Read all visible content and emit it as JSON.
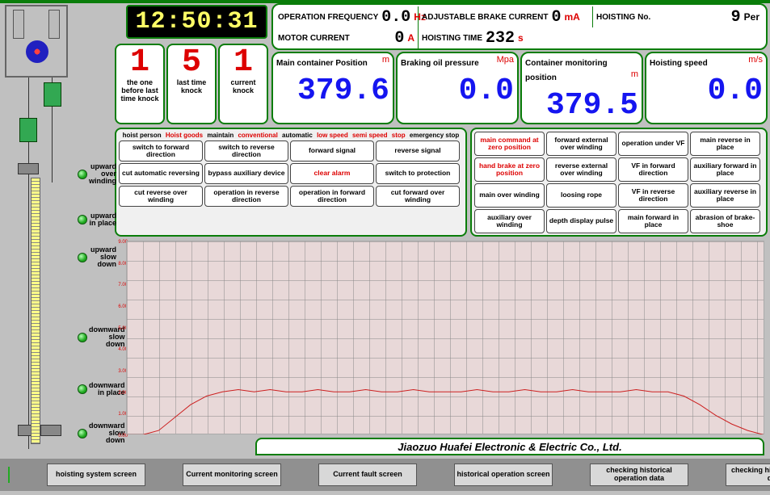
{
  "clock": "12:50:31",
  "readouts": {
    "op_freq_label": "OPERATION FREQUENCY",
    "op_freq_val": "0.0",
    "op_freq_unit": "Hz",
    "brake_cur_label": "ADJUSTABLE BRAKE CURRENT",
    "brake_cur_val": "0",
    "brake_cur_unit": "mA",
    "motor_cur_label": "MOTOR CURRENT",
    "motor_cur_val": "0",
    "motor_cur_unit": "A",
    "hoist_time_label": "HOISTING TIME",
    "hoist_time_val": "232",
    "hoist_time_unit": "s",
    "hoist_no_label": "HOISTING No.",
    "hoist_no_val": "9",
    "hoist_no_unit": "Per"
  },
  "knocks": [
    {
      "num": "1",
      "label": "the one before last time knock"
    },
    {
      "num": "5",
      "label": "last time knock"
    },
    {
      "num": "1",
      "label": "current knock"
    }
  ],
  "bigvals": [
    {
      "title": "Main container Position",
      "unit": "m",
      "val": "379.6"
    },
    {
      "title": "Braking oil pressure",
      "unit": "Mpa",
      "val": "0.0"
    },
    {
      "title": "Container monitoring position",
      "unit": "m",
      "val": "379.5"
    },
    {
      "title": "Hoisting speed",
      "unit": "m/s",
      "val": "0.0"
    }
  ],
  "modes": [
    {
      "t": "hoist person",
      "r": false
    },
    {
      "t": "Hoist goods",
      "r": true
    },
    {
      "t": "maintain",
      "r": false
    },
    {
      "t": "conventional",
      "r": true
    },
    {
      "t": "automatic",
      "r": false
    },
    {
      "t": "low speed",
      "r": true
    },
    {
      "t": "semi speed",
      "r": true
    },
    {
      "t": "stop",
      "r": true
    },
    {
      "t": "emergency stop",
      "r": false
    }
  ],
  "left_buttons": [
    {
      "t": "switch to forward direction",
      "w": 104
    },
    {
      "t": "switch to reverse direction",
      "w": 104
    },
    {
      "t": "forward signal",
      "w": 104
    },
    {
      "t": "reverse signal",
      "w": 104
    },
    {
      "t": "cut automatic reversing",
      "w": 104
    },
    {
      "t": "bypass auxiliary device",
      "w": 104
    },
    {
      "t": "clear alarm",
      "w": 104,
      "r": true
    },
    {
      "t": "switch to protection",
      "w": 104
    },
    {
      "t": "cut reverse over winding",
      "w": 104
    },
    {
      "t": "operation in reverse direction",
      "w": 104
    },
    {
      "t": "operation in forward direction",
      "w": 104
    },
    {
      "t": "cut forward over winding",
      "w": 104
    }
  ],
  "right_buttons": [
    {
      "t": "main command at zero position",
      "r": true
    },
    {
      "t": "forward external over winding"
    },
    {
      "t": "operation under VF"
    },
    {
      "t": "main reverse in place"
    },
    {
      "t": "hand brake at zero position",
      "r": true
    },
    {
      "t": "reverse external over winding"
    },
    {
      "t": "VF in forward direction"
    },
    {
      "t": "auxiliary forward in place"
    },
    {
      "t": "main over winding"
    },
    {
      "t": "loosing rope"
    },
    {
      "t": "VF in reverse direction"
    },
    {
      "t": "auxiliary reverse in place"
    },
    {
      "t": "auxiliary over winding"
    },
    {
      "t": "depth display pulse"
    },
    {
      "t": "main forward in place"
    },
    {
      "t": "abrasion of brake-shoe"
    }
  ],
  "leds": [
    {
      "label": "upward over winding"
    },
    {
      "label": "upward in place"
    },
    {
      "label": "upward slow down"
    },
    {
      "label": "downward slow down"
    },
    {
      "label": "downward in place"
    },
    {
      "label": "downward slow down"
    }
  ],
  "chart": {
    "type": "line",
    "ylim": [
      0,
      9
    ],
    "ytick_step": 1,
    "background_color": "#e8d8d8",
    "grid_color": "#888888",
    "line_color": "#cc2020",
    "line_width": 1,
    "x_range": [
      0,
      360
    ],
    "y_ticks": [
      "0.00",
      "1.00",
      "2.00",
      "3.00",
      "4.00",
      "5.00",
      "6.00",
      "7.00",
      "8.00",
      "9.00"
    ],
    "series": [
      0,
      0,
      0.2,
      0.8,
      1.4,
      1.8,
      2.0,
      2.1,
      2.0,
      2.1,
      2.0,
      2.0,
      2.1,
      2.0,
      2.0,
      2.1,
      2.0,
      2.0,
      2.1,
      2.0,
      2.0,
      2.0,
      2.1,
      2.0,
      2.0,
      2.1,
      2.0,
      2.0,
      2.1,
      2.0,
      2.0,
      2.0,
      2.1,
      2.0,
      2.0,
      1.8,
      1.4,
      0.9,
      0.5,
      0.2,
      0
    ]
  },
  "footer_title": "Jiaozuo Huafei Electronic & Electric Co., Ltd.",
  "bottom_buttons": [
    "hoisting system screen",
    "Current monitoring screen",
    "Current fault screen",
    "historical operation screen",
    "checking historical operation data",
    "checking historical faults data"
  ]
}
